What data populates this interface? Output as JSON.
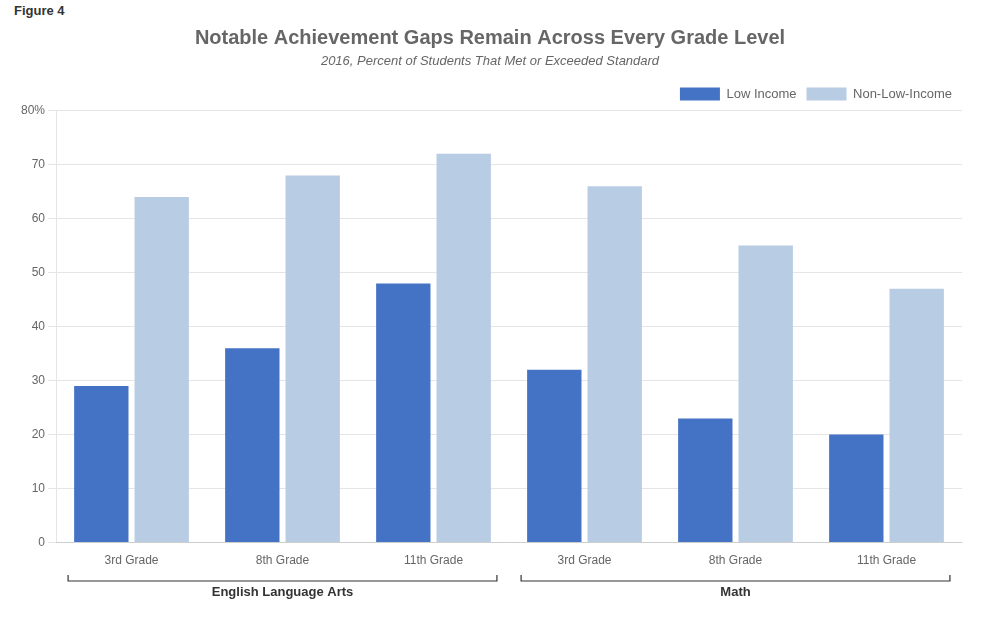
{
  "chart_data": {
    "type": "bar",
    "figure_label": "Figure 4",
    "title": "Notable Achievement Gaps Remain Across Every Grade Level",
    "subtitle": "2016, Percent of Students That Met or Exceeded Standard",
    "categories": [
      "3rd Grade",
      "8th Grade",
      "11th Grade",
      "3rd Grade",
      "8th Grade",
      "11th Grade"
    ],
    "category_groups": [
      "English Language Arts",
      "English Language Arts",
      "English Language Arts",
      "Math",
      "Math",
      "Math"
    ],
    "series": [
      {
        "name": "Low Income",
        "color": "#4472c4",
        "values": [
          29,
          36,
          48,
          32,
          23,
          20
        ]
      },
      {
        "name": "Non-Low-Income",
        "color": "#b8cce4",
        "values": [
          64,
          68,
          72,
          66,
          55,
          47
        ]
      }
    ],
    "ylim": [
      0,
      80
    ],
    "yticks": [
      0,
      10,
      20,
      30,
      40,
      50,
      60,
      70,
      {
        "value": 80,
        "label": "80%"
      }
    ],
    "grid": true,
    "legend": "upper right"
  }
}
